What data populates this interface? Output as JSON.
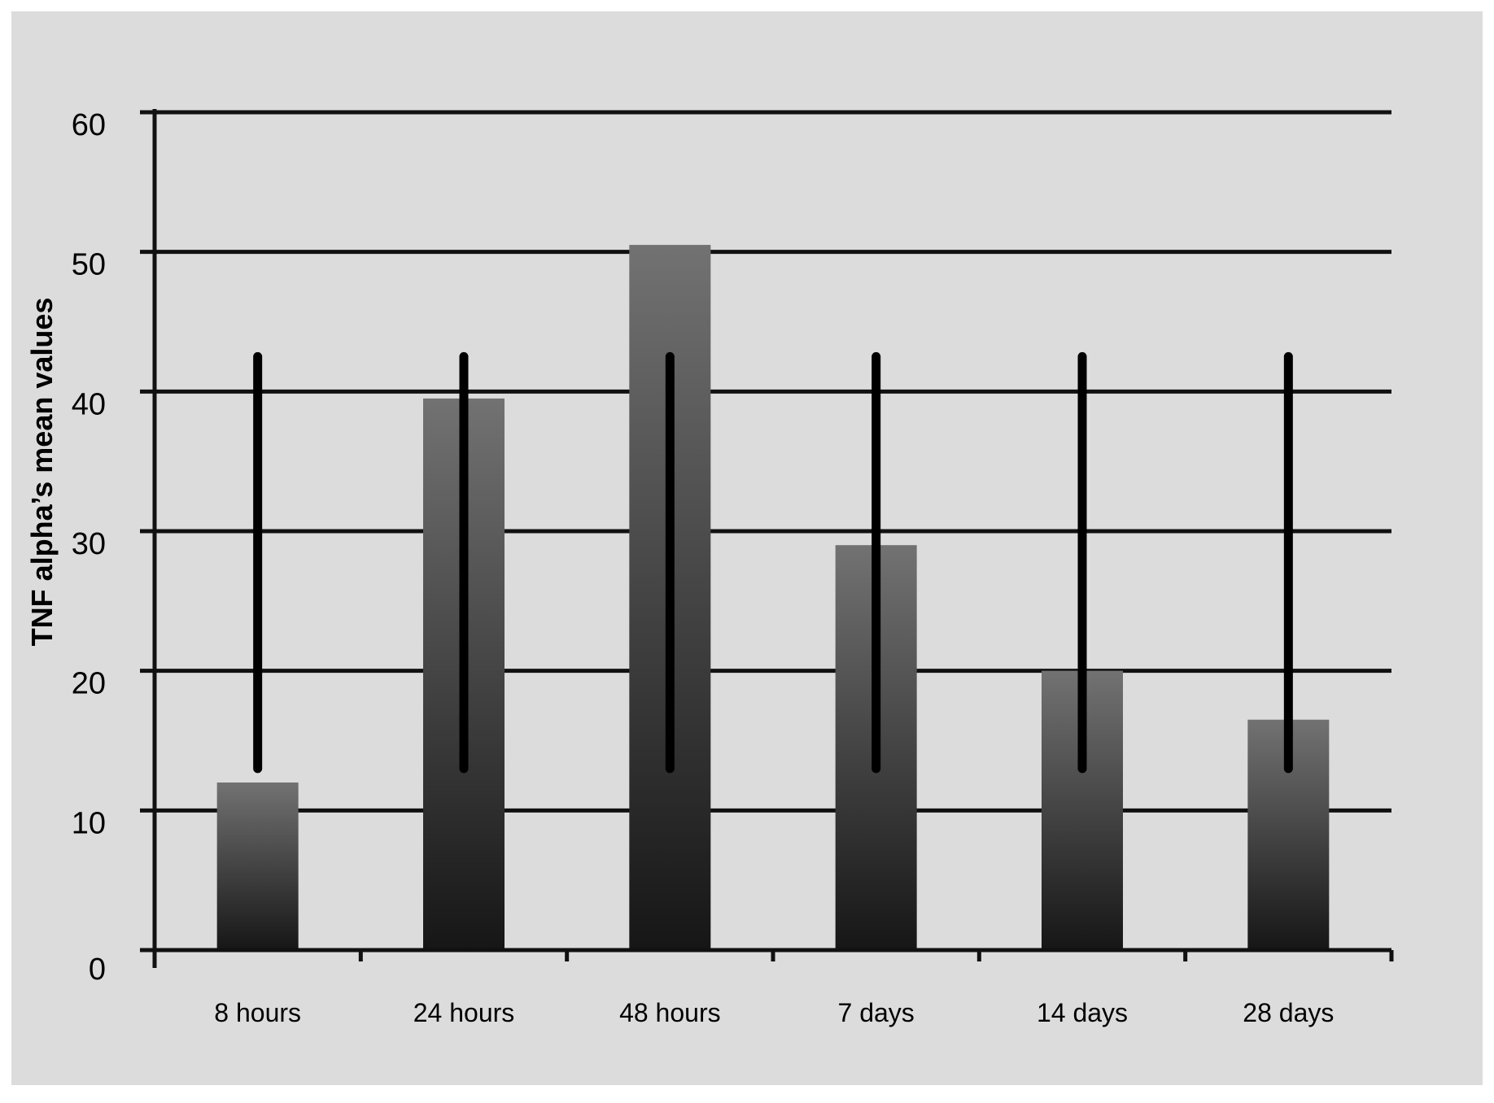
{
  "chart_data": {
    "type": "bar",
    "title": "",
    "xlabel": "",
    "ylabel": "TNF alpha’s mean values",
    "categories": [
      "8 hours",
      "24 hours",
      "48 hours",
      "7 days",
      "14 days",
      "28 days"
    ],
    "values": [
      12,
      39.5,
      50.5,
      29,
      20,
      16.5
    ],
    "error_bars": [
      {
        "low": 13,
        "high": 42.5
      },
      {
        "low": 13,
        "high": 42.5
      },
      {
        "low": 13,
        "high": 42.5
      },
      {
        "low": 13,
        "high": 42.5
      },
      {
        "low": 13,
        "high": 42.5
      },
      {
        "low": 13,
        "high": 42.5
      }
    ],
    "yticks": [
      0,
      10,
      20,
      30,
      40,
      50,
      60
    ],
    "ylim": [
      0,
      60
    ],
    "grid": true,
    "legend": "none",
    "colors": {
      "background": "#dcdcdc",
      "bar_top": "#727272",
      "bar_bottom": "#161616",
      "grid": "#111111",
      "error_bar": "#000000"
    }
  }
}
